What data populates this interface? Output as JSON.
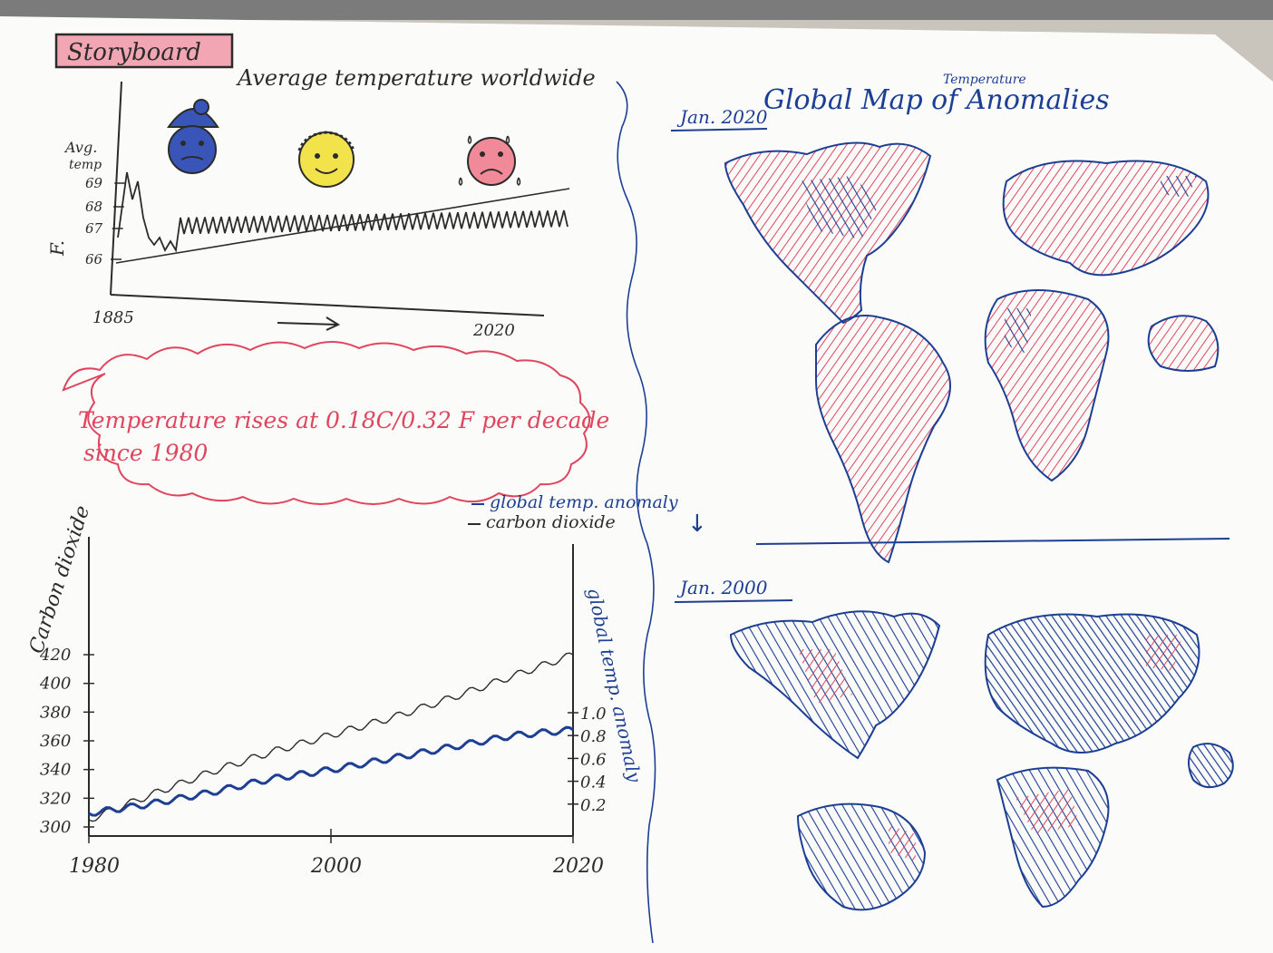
{
  "colors": {
    "paper": "#fbfbf9",
    "ink_black": "#2b2b2b",
    "ink_blue": "#1c3f94",
    "ink_red": "#e0455e",
    "face_blue": "#3a55b8",
    "face_yellow": "#f3e34a",
    "face_pink": "#f08a98",
    "background": "#c9c4bc"
  },
  "storyboard": {
    "label": "Storyboard"
  },
  "chart1": {
    "title": "Average temperature worldwide",
    "ylabel_top": "Avg.",
    "ylabel_bottom": "temp",
    "yunit": "F.",
    "yticks": [
      "69",
      "68",
      "67",
      "66"
    ],
    "x_start": "1885",
    "x_end": "2020",
    "faces": [
      "cold-face",
      "happy-face",
      "sad-sweating-face"
    ]
  },
  "callout": {
    "line1": "Temperature rises at 0.18C/0.32 F per decade",
    "line2": "since 1980"
  },
  "chart_data": {
    "type": "line",
    "x": [
      1980,
      1985,
      1990,
      1995,
      2000,
      2005,
      2010,
      2015,
      2020
    ],
    "xticks": [
      "1980",
      "2000",
      "2020"
    ],
    "series": [
      {
        "name": "carbon dioxide",
        "axis": "left",
        "values": [
          305,
          322,
          338,
          352,
          364,
          376,
          390,
          405,
          420
        ]
      },
      {
        "name": "global temp. anomaly",
        "axis": "right",
        "values": [
          0.12,
          0.2,
          0.3,
          0.42,
          0.5,
          0.6,
          0.7,
          0.8,
          0.85
        ]
      }
    ],
    "ylabel_left": "Carbon dioxide",
    "ylabel_right": "global temp. anomaly",
    "yticks_left": [
      "420",
      "400",
      "380",
      "360",
      "340",
      "320",
      "300"
    ],
    "yticks_right": [
      "1.0",
      "0.8",
      "0.6",
      "0.4",
      "0.2"
    ],
    "ylim_left": [
      300,
      420
    ],
    "ylim_right": [
      0,
      1
    ],
    "legend": [
      "global temp. anomaly",
      "carbon dioxide"
    ]
  },
  "map_section": {
    "title": "Global Map of Anomalies",
    "title_super": "Temperature",
    "panel_top_label": "Jan. 2020",
    "panel_bottom_label": "Jan. 2000",
    "arrow": "↓"
  }
}
